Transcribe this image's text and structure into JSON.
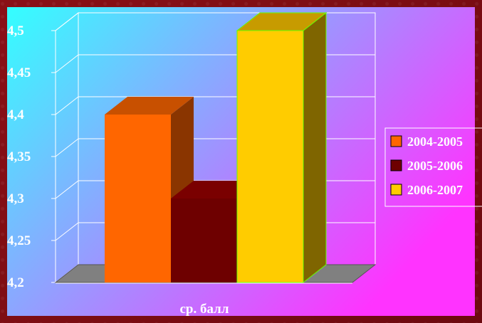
{
  "chart_data": {
    "type": "bar",
    "categories": [
      "ср. балл"
    ],
    "series": [
      {
        "name": "2004-2005",
        "values": [
          4.4
        ],
        "color": "#ff6600",
        "top_color": "#c85000",
        "side_color": "#8a3500"
      },
      {
        "name": "2005-2006",
        "values": [
          4.3
        ],
        "color": "#6e0000",
        "top_color": "#7a0000",
        "side_color": "#4a0000"
      },
      {
        "name": "2006-2007",
        "values": [
          4.5
        ],
        "color": "#ffcc00",
        "top_color": "#c79b00",
        "side_color": "#7f6500"
      }
    ],
    "y_ticks": [
      "4,2",
      "4,25",
      "4,3",
      "4,35",
      "4,4",
      "4,45",
      "4,5"
    ],
    "ylim": [
      4.2,
      4.5
    ],
    "grid": true,
    "legend_position": "right",
    "three_d": true
  },
  "colors": {
    "background_gradient_start": "#33ffff",
    "background_gradient_end": "#ff33ff",
    "floor": "#808080",
    "gridline": "#ffffff",
    "bar_edge_highlight": "#66ff00"
  }
}
